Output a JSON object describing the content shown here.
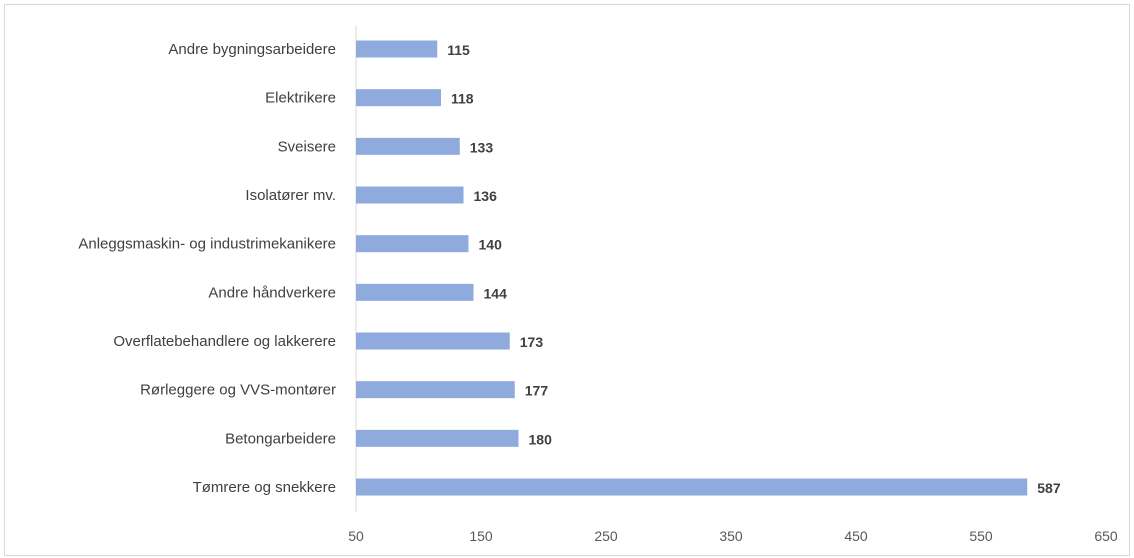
{
  "chart_data": {
    "type": "bar",
    "orientation": "horizontal",
    "categories": [
      "Andre bygningsarbeidere",
      "Elektrikere",
      "Sveisere",
      "Isolatører mv.",
      "Anleggsmaskin- og industrimekanikere",
      "Andre håndverkere",
      "Overflatebehandlere og lakkerere",
      "Rørleggere og VVS-montører",
      "Betongarbeidere",
      "Tømrere og snekkere"
    ],
    "values": [
      115,
      118,
      133,
      136,
      140,
      144,
      173,
      177,
      180,
      587
    ],
    "value_labels": [
      "115",
      "118",
      "133",
      "136",
      "140",
      "144",
      "173",
      "177",
      "180",
      "587"
    ],
    "xlim": [
      50,
      650
    ],
    "xticks": [
      50,
      150,
      250,
      350,
      450,
      550,
      650
    ],
    "xtick_labels": [
      "50",
      "150",
      "250",
      "350",
      "450",
      "550",
      "650"
    ],
    "title": "",
    "xlabel": "",
    "ylabel": "",
    "grid": false,
    "legend": "none",
    "colors": {
      "bar": "#8faadc",
      "text": "#404040",
      "axis": "#d9d9d9"
    }
  }
}
